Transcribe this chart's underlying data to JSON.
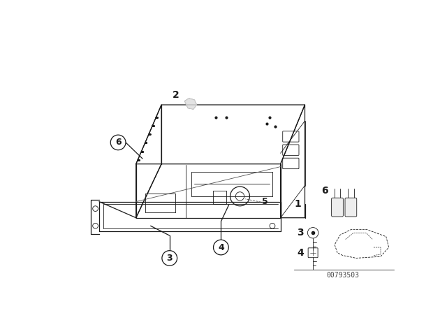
{
  "background_color": "#ffffff",
  "fig_width": 6.4,
  "fig_height": 4.48,
  "dpi": 100,
  "diagram_number": "00793503",
  "text_color": "#1a1a1a",
  "line_color": "#1a1a1a",
  "lw_main": 0.9,
  "lw_detail": 0.6
}
